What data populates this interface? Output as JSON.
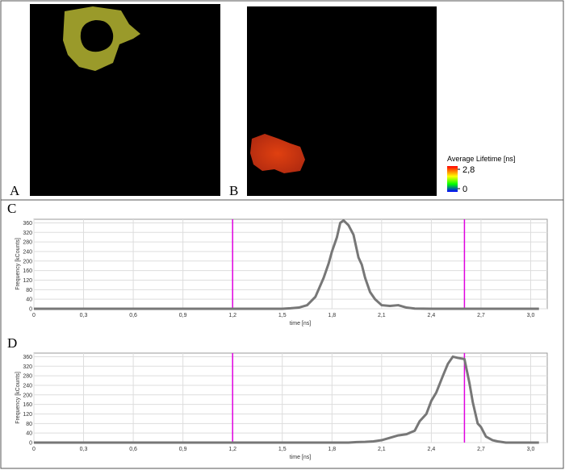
{
  "images": [
    {
      "label": "A"
    },
    {
      "label": "B"
    }
  ],
  "colorbar": {
    "title": "Average Lifetime [ns]",
    "clim": [
      0,
      2.8
    ],
    "ticks": [
      {
        "value": 2.8,
        "label": "2,8"
      },
      0
    ]
  },
  "chart_data": [
    {
      "type": "line",
      "panel_label": "C",
      "xlabel": "time [ns]",
      "ylabel": "Frequency [kCounts]",
      "x": [
        0,
        1.4,
        1.5,
        1.55,
        1.6,
        1.65,
        1.7,
        1.75,
        1.78,
        1.8,
        1.83,
        1.85,
        1.87,
        1.9,
        1.93,
        1.96,
        1.98,
        2.0,
        2.03,
        2.06,
        2.1,
        2.15,
        2.2,
        2.25,
        2.3,
        2.4,
        3.05
      ],
      "values": [
        0,
        0,
        0,
        2,
        5,
        15,
        50,
        130,
        190,
        240,
        300,
        360,
        370,
        350,
        310,
        215,
        185,
        130,
        70,
        40,
        15,
        12,
        15,
        5,
        1,
        0,
        0
      ],
      "color": "#777777",
      "vlines": [
        1.2,
        2.6
      ],
      "vline_color": "#e000e0",
      "xlim": [
        0,
        3.1
      ],
      "ylim": [
        0,
        375
      ],
      "xticks": [
        0,
        {
          "value": 0.3,
          "label": "0,3"
        },
        {
          "value": 0.6,
          "label": "0,6"
        },
        {
          "value": 0.9,
          "label": "0,9"
        },
        {
          "value": 1.2,
          "label": "1,2"
        },
        {
          "value": 1.5,
          "label": "1,5"
        },
        {
          "value": 1.8,
          "label": "1,8"
        },
        {
          "value": 2.1,
          "label": "2,1"
        },
        {
          "value": 2.4,
          "label": "2,4"
        },
        {
          "value": 2.7,
          "label": "2,7"
        },
        {
          "value": 3.0,
          "label": "3,0"
        }
      ],
      "yticks": [
        0,
        40,
        80,
        120,
        160,
        200,
        240,
        280,
        320,
        360
      ],
      "grid": true
    },
    {
      "type": "line",
      "panel_label": "D",
      "xlabel": "time [ns]",
      "ylabel": "Frequency [kCounts]",
      "x": [
        0,
        1.9,
        1.95,
        2.0,
        2.05,
        2.1,
        2.15,
        2.2,
        2.25,
        2.3,
        2.33,
        2.37,
        2.4,
        2.43,
        2.47,
        2.5,
        2.53,
        2.56,
        2.6,
        2.63,
        2.65,
        2.68,
        2.7,
        2.73,
        2.77,
        2.8,
        2.85,
        3.05
      ],
      "values": [
        0,
        0,
        2,
        3,
        5,
        10,
        20,
        30,
        35,
        50,
        90,
        120,
        175,
        210,
        280,
        330,
        360,
        355,
        350,
        250,
        170,
        80,
        65,
        25,
        10,
        5,
        0,
        0
      ],
      "color": "#777777",
      "vlines": [
        1.2,
        2.6
      ],
      "vline_color": "#e000e0",
      "xlim": [
        0,
        3.1
      ],
      "ylim": [
        0,
        375
      ],
      "xticks": [
        0,
        {
          "value": 0.3,
          "label": "0,3"
        },
        {
          "value": 0.6,
          "label": "0,6"
        },
        {
          "value": 0.9,
          "label": "0,9"
        },
        {
          "value": 1.2,
          "label": "1,2"
        },
        {
          "value": 1.5,
          "label": "1,5"
        },
        {
          "value": 1.8,
          "label": "1,8"
        },
        {
          "value": 2.1,
          "label": "2,1"
        },
        {
          "value": 2.4,
          "label": "2,4"
        },
        {
          "value": 2.7,
          "label": "2,7"
        },
        {
          "value": 3.0,
          "label": "3,0"
        }
      ],
      "yticks": [
        0,
        40,
        80,
        120,
        160,
        200,
        240,
        280,
        320,
        360
      ],
      "grid": true
    }
  ]
}
